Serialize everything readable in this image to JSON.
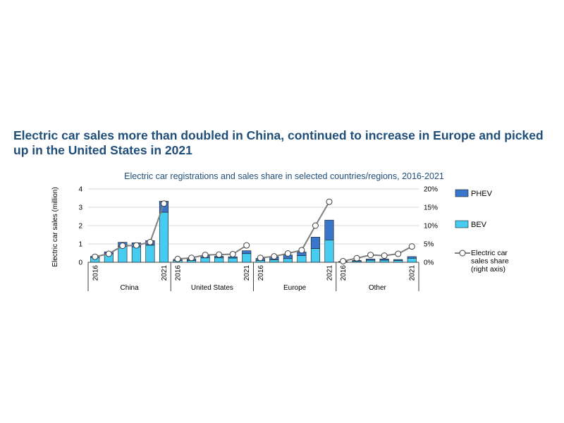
{
  "headline": "Electric car sales more than doubled in China, continued to increase in Europe and picked up in the United States in 2021",
  "chart_data": {
    "type": "bar",
    "subtype": "stacked bar with line on secondary axis",
    "title": "Electric car registrations and sales share in selected countries/regions, 2016-2021",
    "ylabel": "Electric car sales (million)",
    "ylim": [
      0,
      4
    ],
    "yticks": [
      "0",
      "1",
      "2",
      "3",
      "4"
    ],
    "y2lim": [
      0,
      20
    ],
    "y2ticks": [
      "0%",
      "5%",
      "10%",
      "15%",
      "20%"
    ],
    "year_first_label": "2016",
    "year_last_label": "2021",
    "grid": true,
    "legend_position": "right",
    "groups": [
      {
        "name": "China",
        "bev": [
          0.26,
          0.46,
          0.86,
          0.84,
          0.93,
          2.73
        ],
        "phev": [
          0.07,
          0.11,
          0.23,
          0.22,
          0.25,
          0.6
        ],
        "share": [
          1.5,
          2.3,
          4.5,
          4.6,
          5.5,
          16.0
        ]
      },
      {
        "name": "United States",
        "bev": [
          0.09,
          0.1,
          0.24,
          0.24,
          0.23,
          0.47
        ],
        "phev": [
          0.07,
          0.09,
          0.12,
          0.09,
          0.07,
          0.16
        ],
        "share": [
          0.9,
          1.2,
          2.0,
          2.1,
          2.2,
          4.6
        ]
      },
      {
        "name": "Europe",
        "bev": [
          0.1,
          0.14,
          0.2,
          0.36,
          0.75,
          1.22
        ],
        "phev": [
          0.11,
          0.16,
          0.2,
          0.2,
          0.62,
          1.08
        ],
        "share": [
          1.2,
          1.6,
          2.4,
          3.3,
          10.0,
          16.5
        ]
      },
      {
        "name": "Other",
        "bev": [
          0.02,
          0.05,
          0.11,
          0.11,
          0.1,
          0.22
        ],
        "phev": [
          0.02,
          0.05,
          0.07,
          0.07,
          0.05,
          0.09
        ],
        "share": [
          0.3,
          1.1,
          2.0,
          1.8,
          2.3,
          4.3
        ]
      }
    ],
    "legend": [
      {
        "key": "phev",
        "label": "PHEV",
        "color": "#3a75cc"
      },
      {
        "key": "bev",
        "label": "BEV",
        "color": "#45ccf0"
      },
      {
        "key": "share",
        "label_lines": [
          "Electric car",
          "sales share",
          "(right axis)"
        ],
        "color": "#7f7f7f"
      }
    ]
  }
}
